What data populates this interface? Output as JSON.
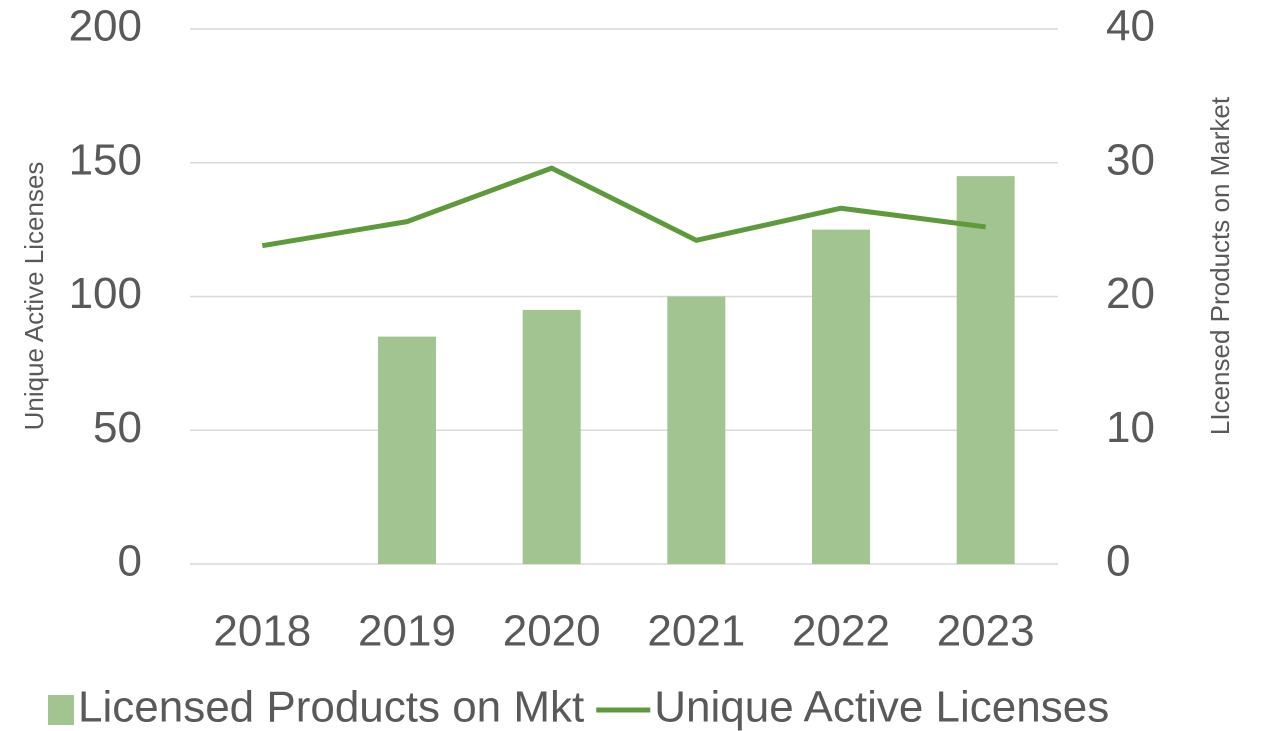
{
  "chart_data": {
    "type": "bar-line",
    "categories": [
      "2018",
      "2019",
      "2020",
      "2021",
      "2022",
      "2023"
    ],
    "series": [
      {
        "name": "Licensed Products on Mkt",
        "type": "bar",
        "axis": "y2",
        "color": "#a2c490",
        "values": [
          0,
          17,
          19,
          20,
          25,
          29
        ]
      },
      {
        "name": "Unique Active Licenses",
        "type": "line",
        "axis": "y",
        "color": "#5e9a3c",
        "values": [
          119,
          128,
          148,
          121,
          133,
          126
        ]
      }
    ],
    "ylabel": "Unique Active Licenses",
    "y2label": "LIcensed Products on Market",
    "ylim": [
      0,
      200
    ],
    "yticks": [
      0,
      50,
      100,
      150,
      200
    ],
    "y2lim": [
      0,
      40
    ],
    "y2ticks": [
      0,
      10,
      20,
      30,
      40
    ],
    "grid": true,
    "legend": "bottom"
  }
}
